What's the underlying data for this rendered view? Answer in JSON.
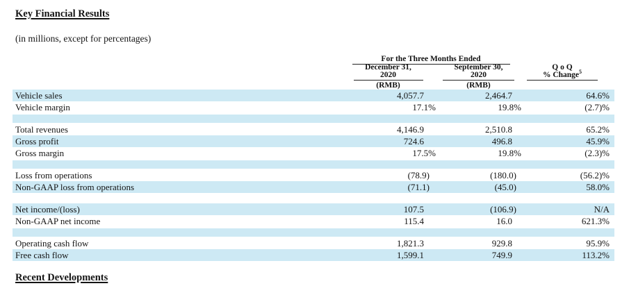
{
  "document": {
    "title": "Key Financial Results",
    "subtitle": "(in millions, except for percentages)",
    "next_section_heading": "Recent Developments"
  },
  "table": {
    "period_header": "For the Three Months Ended",
    "columns": {
      "dec": {
        "line1": "December 31,",
        "line2": "2020",
        "unit": "(RMB)"
      },
      "sep": {
        "line1": "September 30,",
        "line2": "2020",
        "unit": "(RMB)"
      },
      "qoq": {
        "line1": "Q o Q",
        "line2": "% Change",
        "footnote_marker": "5"
      }
    },
    "colors": {
      "stripe": "#cde9f4"
    },
    "rows": [
      {
        "label": "Vehicle sales",
        "dec": "4,057.7",
        "sep": "2,464.7",
        "qoq": "64.6%"
      },
      {
        "label": "Vehicle margin",
        "dec": "17.1%",
        "sep": "19.8%",
        "qoq": "(2.7)%"
      },
      {
        "blank": true
      },
      {
        "label": "Total revenues",
        "dec": "4,146.9",
        "sep": "2,510.8",
        "qoq": "65.2%"
      },
      {
        "label": "Gross profit",
        "dec": "724.6",
        "sep": "496.8",
        "qoq": "45.9%"
      },
      {
        "label": "Gross margin",
        "dec": "17.5%",
        "sep": "19.8%",
        "qoq": "(2.3)%"
      },
      {
        "blank": true
      },
      {
        "label": "Loss from operations",
        "dec": "(78.9)",
        "sep": "(180.0)",
        "qoq": "(56.2)%"
      },
      {
        "label": "Non-GAAP loss from operations",
        "dec": "(71.1)",
        "sep": "(45.0)",
        "qoq": "58.0%"
      },
      {
        "blank": true
      },
      {
        "label": "Net income/(loss)",
        "dec": "107.5",
        "sep": "(106.9)",
        "qoq": "N/A"
      },
      {
        "label": "Non-GAAP net income",
        "dec": "115.4",
        "sep": "16.0",
        "qoq": "621.3%"
      },
      {
        "blank": true
      },
      {
        "label": "Operating cash flow",
        "dec": "1,821.3",
        "sep": "929.8",
        "qoq": "95.9%"
      },
      {
        "label": "Free cash flow",
        "dec": "1,599.1",
        "sep": "749.9",
        "qoq": "113.2%"
      }
    ]
  }
}
